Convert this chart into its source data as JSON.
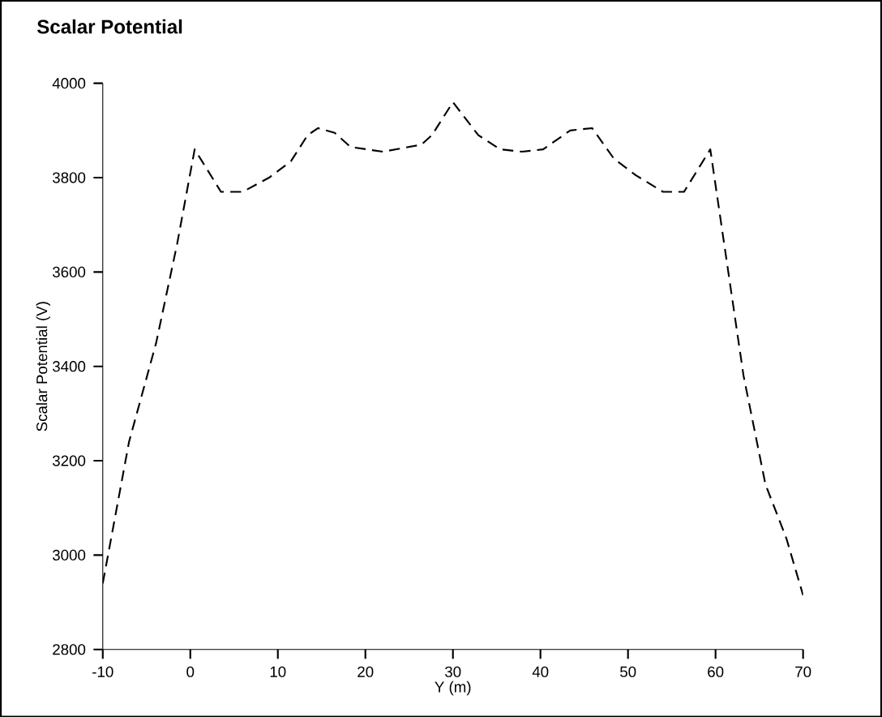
{
  "chart_data": {
    "type": "line",
    "title": "Scalar Potential",
    "xlabel": "Y (m)",
    "ylabel": "Scalar Potential (V)",
    "x": [
      -10,
      -7,
      -3.9,
      -1.5,
      0.5,
      3.5,
      6,
      9,
      11.5,
      13.4,
      14.6,
      16.5,
      18.3,
      22,
      26.4,
      27.6,
      30,
      32.9,
      35.4,
      37.9,
      40.3,
      43.4,
      45.9,
      48.4,
      50.9,
      54,
      56.4,
      59.4,
      63.2,
      65.7,
      68.1,
      70
    ],
    "series": [
      {
        "color": "#000000",
        "values": [
          2940,
          3240,
          3450,
          3660,
          3860,
          3770,
          3770,
          3800,
          3835,
          3890,
          3905,
          3895,
          3865,
          3855,
          3870,
          3890,
          3960,
          3890,
          3860,
          3855,
          3860,
          3900,
          3905,
          3840,
          3805,
          3770,
          3770,
          3860,
          3380,
          3150,
          3035,
          2915
        ]
      }
    ],
    "xlim": [
      -10,
      70
    ],
    "xticks": [
      -10,
      0,
      10,
      20,
      30,
      40,
      50,
      60,
      70
    ],
    "ylim": [
      2800,
      4000
    ],
    "yticks": [
      2800,
      3000,
      3200,
      3400,
      3600,
      3800,
      4000
    ],
    "grid": false,
    "marker": "none",
    "line_style": "dashed"
  }
}
